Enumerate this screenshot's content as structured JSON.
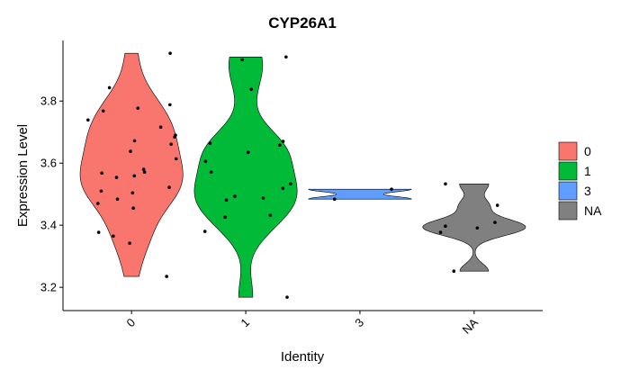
{
  "chart_data": {
    "type": "violin",
    "title": "CYP26A1",
    "x_label": "Identity",
    "y_label": "Expression Level",
    "categories": [
      "0",
      "1",
      "3",
      "NA"
    ],
    "series": [
      {
        "name": "0",
        "color": "#f8766d",
        "values": [
          3.954,
          3.843,
          3.788,
          3.777,
          3.768,
          3.739,
          3.716,
          3.69,
          3.684,
          3.672,
          3.661,
          3.638,
          3.614,
          3.58,
          3.571,
          3.568,
          3.559,
          3.554,
          3.522,
          3.51,
          3.504,
          3.484,
          3.47,
          3.455,
          3.377,
          3.365,
          3.342,
          3.235
        ]
      },
      {
        "name": "1",
        "color": "#00ba38",
        "values": [
          3.942,
          3.933,
          3.838,
          3.67,
          3.664,
          3.658,
          3.635,
          3.606,
          3.571,
          3.533,
          3.519,
          3.493,
          3.487,
          3.481,
          3.432,
          3.426,
          3.38,
          3.168
        ]
      },
      {
        "name": "3",
        "color": "#619cff",
        "values": [
          3.516,
          3.484
        ]
      },
      {
        "name": "NA",
        "color": "#808080",
        "values": [
          3.533,
          3.464,
          3.409,
          3.397,
          3.391,
          3.377,
          3.252
        ]
      }
    ],
    "ylim": [
      3.125,
      3.995
    ],
    "yticks": [
      3.2,
      3.4,
      3.6,
      3.8
    ],
    "legend": "right"
  }
}
